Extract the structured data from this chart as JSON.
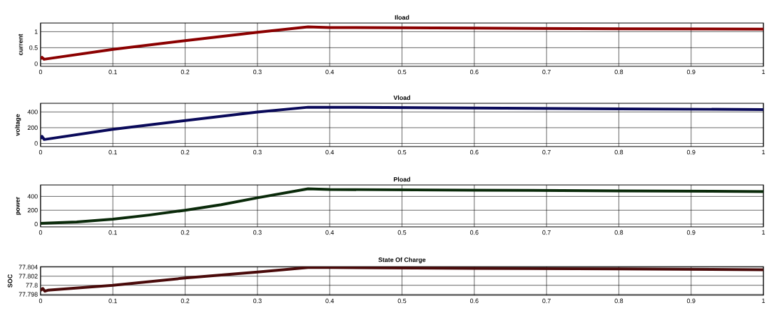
{
  "chart_data": [
    {
      "type": "line",
      "title": "Iload",
      "ylabel": "current",
      "x": [
        0,
        0.002,
        0.005,
        0.1,
        0.2,
        0.3,
        0.37,
        0.4,
        0.6,
        0.8,
        1.0
      ],
      "series": [
        {
          "color": "#8b0000",
          "values": [
            0.15,
            0.2,
            0.14,
            0.45,
            0.72,
            0.98,
            1.15,
            1.13,
            1.11,
            1.09,
            1.08
          ]
        }
      ],
      "xlim": [
        0,
        1
      ],
      "ylim": [
        -0.08,
        1.27
      ],
      "xticks": [
        0,
        0.1,
        0.2,
        0.3,
        0.4,
        0.5,
        0.6,
        0.7,
        0.8,
        0.9,
        1
      ],
      "yticks": [
        0,
        0.5,
        1
      ],
      "grid": true
    },
    {
      "type": "line",
      "title": "Vload",
      "ylabel": "voltage",
      "x": [
        0,
        0.002,
        0.005,
        0.1,
        0.2,
        0.3,
        0.37,
        0.4,
        0.6,
        0.8,
        1.0
      ],
      "series": [
        {
          "color": "#0a0a5a",
          "values": [
            60,
            90,
            50,
            180,
            290,
            400,
            460,
            460,
            450,
            440,
            430
          ]
        }
      ],
      "xlim": [
        0,
        1
      ],
      "ylim": [
        -40,
        510
      ],
      "xticks": [
        0,
        0.1,
        0.2,
        0.3,
        0.4,
        0.5,
        0.6,
        0.7,
        0.8,
        0.9,
        1
      ],
      "yticks": [
        0,
        200,
        400
      ],
      "grid": true
    },
    {
      "type": "line",
      "title": "Pload",
      "ylabel": "power",
      "x": [
        0,
        0.05,
        0.1,
        0.15,
        0.2,
        0.25,
        0.3,
        0.37,
        0.4,
        0.6,
        0.8,
        1.0
      ],
      "series": [
        {
          "color": "#0a2a0a",
          "values": [
            10,
            30,
            70,
            130,
            200,
            280,
            380,
            510,
            500,
            490,
            480,
            470
          ]
        }
      ],
      "xlim": [
        0,
        1
      ],
      "ylim": [
        -40,
        565
      ],
      "xticks": [
        0,
        0.1,
        0.2,
        0.3,
        0.4,
        0.5,
        0.6,
        0.7,
        0.8,
        0.9,
        1
      ],
      "yticks": [
        0,
        200,
        400
      ],
      "grid": true
    },
    {
      "type": "line",
      "title": "State Of Charge",
      "ylabel": "SOC",
      "x": [
        0,
        0.003,
        0.006,
        0.01,
        0.1,
        0.2,
        0.3,
        0.37,
        0.4,
        0.6,
        0.8,
        1.0
      ],
      "series": [
        {
          "color": "#4a0a0a",
          "values": [
            77.7988,
            77.7993,
            77.7987,
            77.7989,
            77.8,
            77.8016,
            77.8029,
            77.8039,
            77.8039,
            77.8037,
            77.8036,
            77.8034
          ]
        }
      ],
      "xlim": [
        0,
        1
      ],
      "ylim": [
        77.7978,
        77.8041
      ],
      "xticks": [
        0,
        0.1,
        0.2,
        0.3,
        0.4,
        0.5,
        0.6,
        0.7,
        0.8,
        0.9,
        1
      ],
      "yticks": [
        77.798,
        77.8,
        77.802,
        77.804
      ],
      "grid": true
    }
  ]
}
